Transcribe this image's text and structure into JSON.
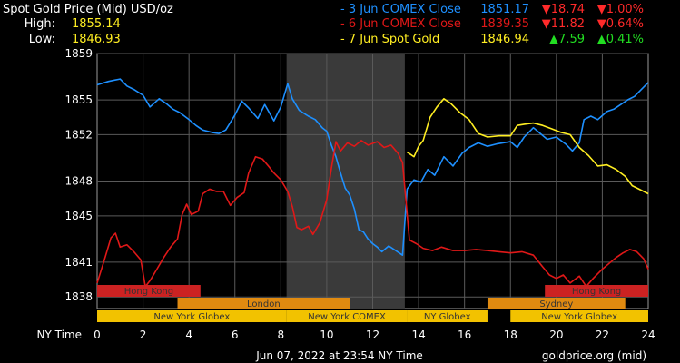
{
  "header": {
    "title": "Spot Gold Price (Mid) USD/oz",
    "high_label": "High:",
    "high_value": "1855.14",
    "low_label": "Low:",
    "low_value": "1846.93"
  },
  "legend": [
    {
      "label": "- 3 Jun COMEX Close",
      "price": "1851.17",
      "change": "▼18.74",
      "pct": "▼1.00%",
      "color": "#1e90ff",
      "change_color": "#ff2a2a"
    },
    {
      "label": "- 6 Jun COMEX Close",
      "price": "1839.35",
      "change": "▼11.82",
      "pct": "▼0.64%",
      "color": "#e01818",
      "change_color": "#ff2a2a"
    },
    {
      "label": "- 7 Jun Spot Gold",
      "price": "1846.94",
      "change": "▲7.59",
      "pct": "▲0.41%",
      "color": "#ffee22",
      "change_color": "#22dd22"
    }
  ],
  "chart_data": {
    "type": "line",
    "xlabel": "NY Time",
    "x_ticks": [
      0,
      2,
      4,
      6,
      8,
      10,
      12,
      14,
      16,
      18,
      20,
      22,
      24
    ],
    "y_ticks": [
      1838,
      1841,
      1845,
      1848,
      1852,
      1855,
      1859
    ],
    "xlim": [
      0,
      24
    ],
    "ylim": [
      1837,
      1859
    ],
    "grid": true,
    "comex_session_shade": [
      8.25,
      13.4
    ],
    "series": [
      {
        "name": "3 Jun COMEX Close",
        "color": "#1e90ff",
        "points": [
          [
            0,
            1856.3
          ],
          [
            0.5,
            1856.6
          ],
          [
            1,
            1856.8
          ],
          [
            1.3,
            1856.2
          ],
          [
            1.6,
            1855.9
          ],
          [
            2,
            1855.4
          ],
          [
            2.3,
            1854.4
          ],
          [
            2.7,
            1855.1
          ],
          [
            3,
            1854.7
          ],
          [
            3.3,
            1854.2
          ],
          [
            3.6,
            1853.9
          ],
          [
            4,
            1853.3
          ],
          [
            4.3,
            1852.8
          ],
          [
            4.6,
            1852.4
          ],
          [
            5,
            1852.2
          ],
          [
            5.3,
            1852.1
          ],
          [
            5.6,
            1852.4
          ],
          [
            6,
            1853.7
          ],
          [
            6.3,
            1854.9
          ],
          [
            6.6,
            1854.3
          ],
          [
            7,
            1853.4
          ],
          [
            7.3,
            1854.6
          ],
          [
            7.7,
            1853.2
          ],
          [
            8,
            1854.4
          ],
          [
            8.3,
            1856.4
          ],
          [
            8.5,
            1855.1
          ],
          [
            8.8,
            1854.1
          ],
          [
            9.2,
            1853.6
          ],
          [
            9.5,
            1853.3
          ],
          [
            9.8,
            1852.6
          ],
          [
            10,
            1852.3
          ],
          [
            10.2,
            1851.1
          ],
          [
            10.4,
            1850.1
          ],
          [
            10.6,
            1848.7
          ],
          [
            10.8,
            1847.4
          ],
          [
            11,
            1846.8
          ],
          [
            11.2,
            1845.6
          ],
          [
            11.4,
            1843.8
          ],
          [
            11.6,
            1843.6
          ],
          [
            11.8,
            1843.0
          ],
          [
            12,
            1842.6
          ],
          [
            12.2,
            1842.3
          ],
          [
            12.4,
            1841.9
          ],
          [
            12.7,
            1842.4
          ],
          [
            13,
            1842.0
          ],
          [
            13.3,
            1841.6
          ],
          [
            13.5,
            1847.3
          ],
          [
            13.8,
            1848.1
          ],
          [
            14.1,
            1847.9
          ],
          [
            14.4,
            1849.0
          ],
          [
            14.7,
            1848.5
          ],
          [
            15.1,
            1850.1
          ],
          [
            15.5,
            1849.3
          ],
          [
            15.9,
            1850.4
          ],
          [
            16.2,
            1850.9
          ],
          [
            16.6,
            1851.3
          ],
          [
            17.0,
            1851.0
          ],
          [
            17.4,
            1851.2
          ],
          [
            18.0,
            1851.4
          ],
          [
            18.3,
            1850.9
          ],
          [
            18.6,
            1851.8
          ],
          [
            19.0,
            1852.6
          ],
          [
            19.3,
            1852.1
          ],
          [
            19.6,
            1851.6
          ],
          [
            20.0,
            1851.8
          ],
          [
            20.4,
            1851.2
          ],
          [
            20.7,
            1850.6
          ],
          [
            21.0,
            1851.3
          ],
          [
            21.2,
            1853.3
          ],
          [
            21.5,
            1853.6
          ],
          [
            21.8,
            1853.3
          ],
          [
            22.2,
            1854.0
          ],
          [
            22.5,
            1854.2
          ],
          [
            22.8,
            1854.6
          ],
          [
            23.1,
            1855.0
          ],
          [
            23.4,
            1855.3
          ],
          [
            23.7,
            1855.9
          ],
          [
            24,
            1856.5
          ]
        ]
      },
      {
        "name": "6 Jun COMEX Close",
        "color": "#e01818",
        "points": [
          [
            0,
            1839.2
          ],
          [
            0.3,
            1841.1
          ],
          [
            0.6,
            1843.1
          ],
          [
            0.8,
            1843.5
          ],
          [
            1,
            1842.3
          ],
          [
            1.3,
            1842.5
          ],
          [
            1.6,
            1841.9
          ],
          [
            1.9,
            1841.2
          ],
          [
            2.1,
            1838.9
          ],
          [
            2.3,
            1839.4
          ],
          [
            2.6,
            1840.4
          ],
          [
            2.9,
            1841.4
          ],
          [
            3.2,
            1842.3
          ],
          [
            3.5,
            1843.0
          ],
          [
            3.7,
            1845.1
          ],
          [
            3.9,
            1846.0
          ],
          [
            4.1,
            1845.1
          ],
          [
            4.4,
            1845.4
          ],
          [
            4.6,
            1846.9
          ],
          [
            4.9,
            1847.3
          ],
          [
            5.2,
            1847.1
          ],
          [
            5.5,
            1847.1
          ],
          [
            5.8,
            1845.9
          ],
          [
            6.1,
            1846.6
          ],
          [
            6.4,
            1847.0
          ],
          [
            6.6,
            1848.7
          ],
          [
            6.9,
            1850.1
          ],
          [
            7.2,
            1849.9
          ],
          [
            7.5,
            1849.2
          ],
          [
            7.7,
            1848.7
          ],
          [
            8,
            1848.1
          ],
          [
            8.3,
            1847.1
          ],
          [
            8.5,
            1845.8
          ],
          [
            8.7,
            1844.0
          ],
          [
            8.9,
            1843.8
          ],
          [
            9.2,
            1844.1
          ],
          [
            9.4,
            1843.4
          ],
          [
            9.7,
            1844.4
          ],
          [
            10.0,
            1846.4
          ],
          [
            10.2,
            1849.1
          ],
          [
            10.4,
            1851.4
          ],
          [
            10.6,
            1850.6
          ],
          [
            10.9,
            1851.3
          ],
          [
            11.2,
            1851.0
          ],
          [
            11.5,
            1851.5
          ],
          [
            11.8,
            1851.1
          ],
          [
            12.2,
            1851.4
          ],
          [
            12.5,
            1850.9
          ],
          [
            12.8,
            1851.1
          ],
          [
            13.1,
            1850.4
          ],
          [
            13.3,
            1849.6
          ],
          [
            13.6,
            1842.9
          ],
          [
            13.9,
            1842.6
          ],
          [
            14.2,
            1842.2
          ],
          [
            14.6,
            1842.0
          ],
          [
            15.0,
            1842.3
          ],
          [
            15.5,
            1842.0
          ],
          [
            16.0,
            1842.0
          ],
          [
            16.5,
            1842.1
          ],
          [
            17.0,
            1842.0
          ],
          [
            17.5,
            1841.9
          ],
          [
            18.0,
            1841.8
          ],
          [
            18.5,
            1841.9
          ],
          [
            19.0,
            1841.6
          ],
          [
            19.4,
            1840.6
          ],
          [
            19.7,
            1839.9
          ],
          [
            20.0,
            1839.6
          ],
          [
            20.3,
            1839.9
          ],
          [
            20.6,
            1839.2
          ],
          [
            21.0,
            1839.8
          ],
          [
            21.3,
            1838.9
          ],
          [
            21.6,
            1839.6
          ],
          [
            22.0,
            1840.4
          ],
          [
            22.3,
            1840.9
          ],
          [
            22.6,
            1841.4
          ],
          [
            22.9,
            1841.8
          ],
          [
            23.2,
            1842.1
          ],
          [
            23.5,
            1841.9
          ],
          [
            23.8,
            1841.3
          ],
          [
            24,
            1840.4
          ]
        ]
      },
      {
        "name": "7 Jun Spot Gold",
        "color": "#ffee22",
        "points": [
          [
            13.5,
            1850.5
          ],
          [
            13.8,
            1850.1
          ],
          [
            14.0,
            1851.0
          ],
          [
            14.2,
            1851.5
          ],
          [
            14.5,
            1853.5
          ],
          [
            14.8,
            1854.4
          ],
          [
            15.1,
            1855.1
          ],
          [
            15.4,
            1854.7
          ],
          [
            15.8,
            1853.9
          ],
          [
            16.2,
            1853.3
          ],
          [
            16.6,
            1852.1
          ],
          [
            17.0,
            1851.8
          ],
          [
            17.5,
            1851.9
          ],
          [
            18.0,
            1851.9
          ],
          [
            18.3,
            1852.8
          ],
          [
            18.6,
            1852.9
          ],
          [
            19.0,
            1853.0
          ],
          [
            19.4,
            1852.8
          ],
          [
            19.8,
            1852.5
          ],
          [
            20.2,
            1852.2
          ],
          [
            20.6,
            1852.0
          ],
          [
            21.0,
            1850.9
          ],
          [
            21.4,
            1850.2
          ],
          [
            21.8,
            1849.3
          ],
          [
            22.2,
            1849.4
          ],
          [
            22.6,
            1849.0
          ],
          [
            23.0,
            1848.4
          ],
          [
            23.3,
            1847.6
          ],
          [
            23.6,
            1847.3
          ],
          [
            24,
            1846.9
          ]
        ]
      }
    ]
  },
  "sessions": [
    {
      "label": "Hong Kong",
      "start": 0,
      "end": 4.5,
      "color": "#cc2222"
    },
    {
      "label": "Hong Kong",
      "start": 19.5,
      "end": 24,
      "color": "#cc2222"
    },
    {
      "label": "London",
      "start": 3.5,
      "end": 11,
      "color": "#e08a10"
    },
    {
      "label": "Sydney",
      "start": 17,
      "end": 23,
      "color": "#e08a10"
    },
    {
      "label": "New York Globex",
      "start": 0,
      "end": 8.25,
      "color": "#f2c200"
    },
    {
      "label": "New York COMEX",
      "start": 8.25,
      "end": 13.5,
      "color": "#f2c200"
    },
    {
      "label": "NY Globex",
      "start": 13.5,
      "end": 17,
      "color": "#f2c200"
    },
    {
      "label": "New York Globex",
      "start": 18,
      "end": 24,
      "color": "#f2c200"
    }
  ],
  "footer": {
    "timestamp": "Jun 07, 2022 at 23:54 NY Time",
    "source": "goldprice.org (mid)"
  }
}
